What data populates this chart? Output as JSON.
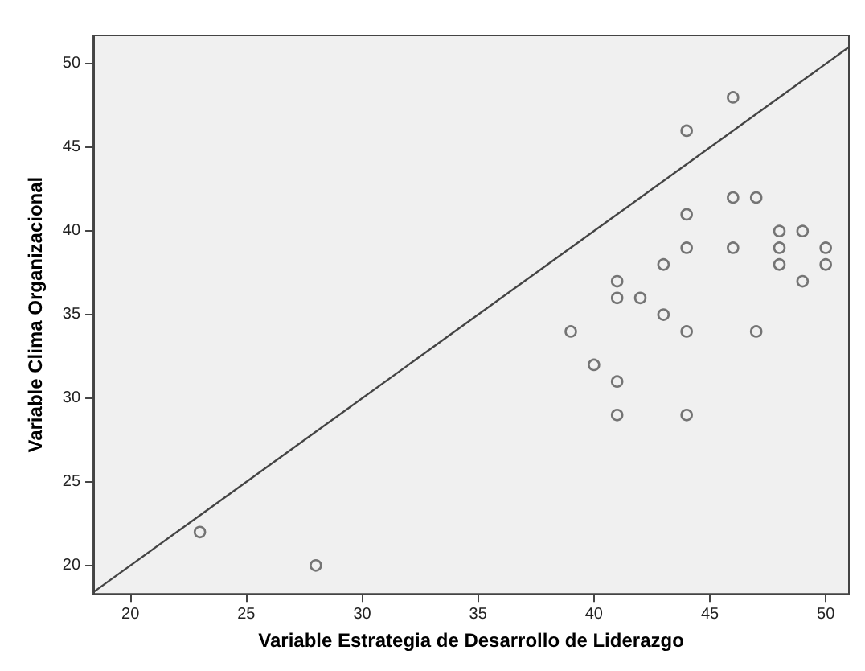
{
  "chart_data": {
    "type": "scatter",
    "xlabel": "Variable Estrategia de Desarrollo de Liderazgo",
    "ylabel": "Variable Clima Organizacional",
    "x": [
      23,
      28,
      39,
      40,
      41,
      41,
      41,
      41,
      42,
      43,
      43,
      44,
      44,
      44,
      44,
      44,
      46,
      46,
      46,
      47,
      47,
      48,
      48,
      48,
      49,
      49,
      50,
      50
    ],
    "series": [
      {
        "color": "#555555",
        "values": [
          22,
          20,
          34,
          32,
          37,
          36,
          31,
          29,
          36,
          38,
          35,
          46,
          41,
          39,
          34,
          29,
          48,
          42,
          39,
          42,
          34,
          40,
          39,
          38,
          40,
          37,
          39,
          38
        ]
      },
      {
        "type": "line",
        "color": "#444444",
        "x": [
          18.4,
          51
        ],
        "values": [
          18.4,
          51
        ],
        "marker": "none"
      }
    ],
    "marker": "circle",
    "grid": false,
    "xlim": [
      18.4,
      51
    ],
    "ylim": [
      18.3,
      51.7
    ],
    "xticks": [
      20,
      25,
      30,
      35,
      40,
      45,
      50
    ],
    "yticks": [
      20,
      25,
      30,
      35,
      40,
      45,
      50
    ]
  }
}
